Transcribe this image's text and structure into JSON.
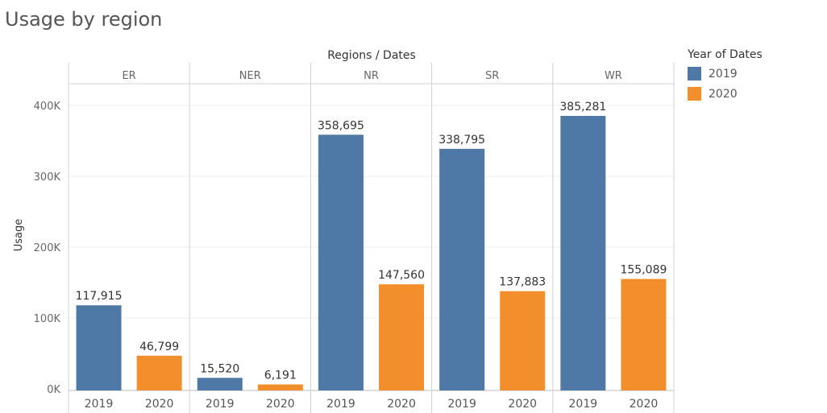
{
  "title": "Usage by region",
  "chart_data": {
    "type": "bar",
    "title": "Usage by region",
    "column_header": "Regions  /  Dates",
    "ylabel": "Usage",
    "ylim": [
      0,
      430000
    ],
    "yticks": [
      {
        "value": 0,
        "label": "0K"
      },
      {
        "value": 100000,
        "label": "100K"
      },
      {
        "value": 200000,
        "label": "200K"
      },
      {
        "value": 300000,
        "label": "300K"
      },
      {
        "value": 400000,
        "label": "400K"
      }
    ],
    "regions": [
      "ER",
      "NER",
      "NR",
      "SR",
      "WR"
    ],
    "series": [
      {
        "name": "2019",
        "color": "#4e79a7",
        "values": [
          117915,
          15520,
          358695,
          338795,
          385281
        ],
        "labels": [
          "117,915",
          "15,520",
          "358,695",
          "338,795",
          "385,281"
        ]
      },
      {
        "name": "2020",
        "color": "#f28e2b",
        "values": [
          46799,
          6191,
          147560,
          137883,
          155089
        ],
        "labels": [
          "46,799",
          "6,191",
          "147,560",
          "137,883",
          "155,089"
        ]
      }
    ],
    "grid": true,
    "legend": {
      "title": "Year of Dates",
      "position": "right"
    }
  }
}
